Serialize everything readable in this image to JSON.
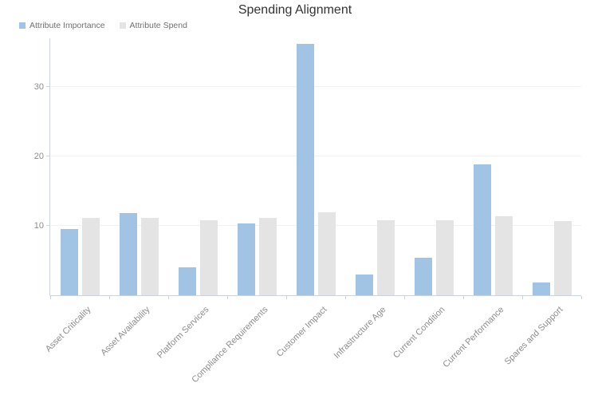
{
  "title": "Spending Alignment",
  "legend": {
    "items": [
      {
        "label": "Attribute Importance",
        "color": "#a1c4e4"
      },
      {
        "label": "Attribute Spend",
        "color": "#e4e4e4"
      }
    ]
  },
  "chart_data": {
    "type": "bar",
    "title": "Spending Alignment",
    "categories": [
      "Asset Criticality",
      "Asset Availability",
      "Platform Services",
      "Compliance Requirements",
      "Customer Impact",
      "Infrastructure Age",
      "Current Condition",
      "Current Performance",
      "Spares and Support"
    ],
    "series": [
      {
        "name": "Attribute Importance",
        "color": "#a1c4e4",
        "values": [
          9.5,
          11.8,
          4.0,
          10.3,
          36.2,
          3.0,
          5.4,
          18.8,
          1.8
        ]
      },
      {
        "name": "Attribute Spend",
        "color": "#e4e4e4",
        "values": [
          11.2,
          11.2,
          10.8,
          11.1,
          11.9,
          10.8,
          10.8,
          11.4,
          10.7
        ]
      }
    ],
    "xlabel": "",
    "ylabel": "",
    "ylim": [
      0,
      37
    ],
    "yticks": [
      10,
      20,
      30
    ],
    "grid": true,
    "legend_position": "top-left"
  },
  "colors": {
    "axis": "#c9d4de",
    "grid": "#eef2f6",
    "tick_text": "#8c8c8c",
    "title_text": "#333333"
  }
}
